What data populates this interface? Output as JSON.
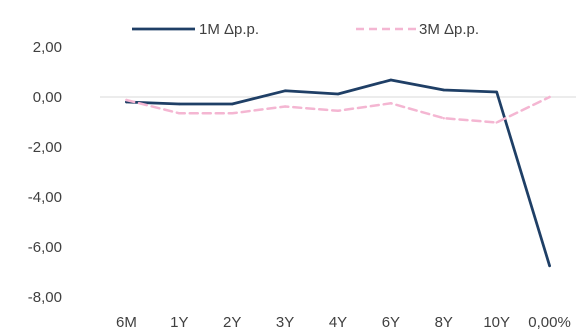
{
  "chart_data": {
    "type": "line",
    "categories": [
      "6M",
      "1Y",
      "2Y",
      "3Y",
      "4Y",
      "6Y",
      "8Y",
      "10Y",
      "0,00%"
    ],
    "series": [
      {
        "name": "1M Δp.p.",
        "color": "#1f3f66",
        "style": "solid",
        "values": [
          -0.2,
          -0.28,
          -0.28,
          0.25,
          0.12,
          0.68,
          0.28,
          0.2,
          -6.75
        ]
      },
      {
        "name": "3M Δp.p.",
        "color": "#f4b6d2",
        "style": "dashed",
        "values": [
          -0.12,
          -0.65,
          -0.65,
          -0.38,
          -0.55,
          -0.25,
          -0.85,
          -1.02,
          0.0
        ]
      }
    ],
    "ylim": [
      -8,
      2
    ],
    "yticks": [
      2,
      0,
      -2,
      -4,
      -6,
      -8
    ],
    "ytick_labels": [
      "2,00",
      "0,00",
      "-2,00",
      "-4,00",
      "-6,00",
      "-8,00"
    ],
    "grid": false,
    "zero_line": true,
    "legend": "top",
    "title": "",
    "xlabel": "",
    "ylabel": ""
  }
}
